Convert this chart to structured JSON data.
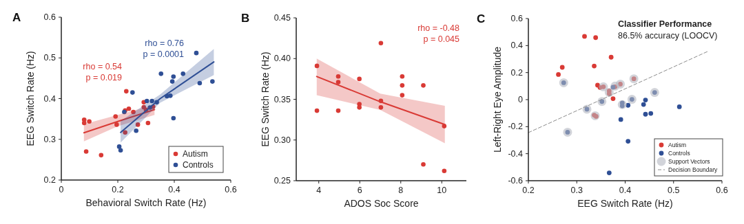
{
  "chart_data": [
    {
      "type": "scatter",
      "title": "A",
      "xlabel": "Behavioral Switch Rate (Hz)",
      "ylabel": "EEG Switch Rate (Hz)",
      "xlim": [
        0,
        0.6
      ],
      "ylim": [
        0.2,
        0.6
      ],
      "xticks": [
        0,
        0.2,
        0.4,
        0.6
      ],
      "yticks": [
        0.2,
        0.3,
        0.4,
        0.5,
        0.6
      ],
      "legend": "bottom right",
      "annotations": [
        "rho = 0.76",
        "p = 0.0001",
        "rho = 0.54",
        "p = 0.019"
      ],
      "series": [
        {
          "name": "Autism",
          "color": "#d93a35",
          "marker": "circle",
          "x": [
            0.081,
            0.081,
            0.099,
            0.088,
            0.141,
            0.192,
            0.196,
            0.23,
            0.239,
            0.226,
            0.255,
            0.226,
            0.271,
            0.292,
            0.292,
            0.3,
            0.307,
            0.325
          ],
          "values": [
            0.348,
            0.34,
            0.344,
            0.27,
            0.261,
            0.356,
            0.336,
            0.418,
            0.375,
            0.371,
            0.367,
            0.317,
            0.336,
            0.391,
            0.379,
            0.372,
            0.34,
            0.38
          ]
        },
        {
          "name": "Controls",
          "color": "#2f4f95",
          "marker": "circle",
          "x": [
            0.252,
            0.223,
            0.205,
            0.21,
            0.265,
            0.303,
            0.321,
            0.314,
            0.338,
            0.353,
            0.374,
            0.386,
            0.397,
            0.393,
            0.397,
            0.431,
            0.478,
            0.49,
            0.535
          ],
          "values": [
            0.415,
            0.367,
            0.282,
            0.273,
            0.321,
            0.394,
            0.394,
            0.378,
            0.391,
            0.461,
            0.406,
            0.407,
            0.454,
            0.442,
            0.352,
            0.461,
            0.512,
            0.438,
            0.442
          ]
        },
        {
          "type": "line",
          "marker": "none",
          "color": "#d93a35",
          "x": [
            0.08,
            0.2,
            0.33
          ],
          "values": [
            0.316,
            0.344,
            0.373
          ],
          "lower": [
            0.295,
            0.332,
            0.36
          ],
          "upper": [
            0.337,
            0.36,
            0.385
          ]
        },
        {
          "type": "line",
          "marker": "none",
          "color": "#2f4f95",
          "x": [
            0.21,
            0.35,
            0.54
          ],
          "values": [
            0.317,
            0.4,
            0.49
          ],
          "lower": [
            0.292,
            0.39,
            0.458
          ],
          "upper": [
            0.345,
            0.41,
            0.522
          ]
        }
      ]
    },
    {
      "type": "scatter",
      "title": "B",
      "xlabel": "ADOS Soc Score",
      "ylabel": "EEG Switch Rate (Hz)",
      "xlim": [
        2.9,
        11.2
      ],
      "ylim": [
        0.25,
        0.45
      ],
      "xticks": [
        4,
        6,
        8,
        10
      ],
      "yticks": [
        0.45,
        {
          "value": 0.4,
          "label": "0.40"
        },
        0.35,
        {
          "value": 0.3,
          "label": "0.30"
        },
        0.25
      ],
      "annotations": [
        "rho = -0.48",
        "p = 0.045"
      ],
      "series": [
        {
          "color": "#d93a35",
          "marker": "circle",
          "x": [
            3.91,
            3.91,
            4.95,
            4.95,
            4.95,
            5.98,
            5.98,
            5.98,
            7.03,
            7.03,
            7.03,
            8.07,
            8.07,
            8.07,
            9.1,
            9.1,
            10.12,
            10.12
          ],
          "values": [
            0.391,
            0.336,
            0.378,
            0.371,
            0.336,
            0.375,
            0.344,
            0.34,
            0.419,
            0.348,
            0.34,
            0.378,
            0.367,
            0.355,
            0.367,
            0.27,
            0.317,
            0.262
          ]
        },
        {
          "type": "line",
          "marker": "none",
          "color": "#d93a35",
          "x": [
            3.9,
            7,
            10.15
          ],
          "values": [
            0.378,
            0.347,
            0.319
          ],
          "lower": [
            0.355,
            0.337,
            0.296
          ],
          "upper": [
            0.4,
            0.357,
            0.342
          ]
        }
      ]
    },
    {
      "type": "scatter",
      "title": "C",
      "xlabel": "EEG Switch Rate (Hz)",
      "ylabel": "Left-Right Eye Amplitude",
      "xlim": [
        0.2,
        0.6
      ],
      "ylim": [
        -0.6,
        0.6
      ],
      "xticks": [
        0.2,
        0.3,
        0.4,
        0.5,
        0.6
      ],
      "yticks": [
        -0.6,
        -0.4,
        -0.2,
        0,
        0.2,
        0.4,
        0.6
      ],
      "legend": "bottom right",
      "annotations": [
        "Classifier Performance",
        "86.5% accuracy (LOOCV)"
      ],
      "series": [
        {
          "name": "Autism",
          "color": "#d93a35",
          "marker": "circle",
          "x": [
            0.316,
            0.339,
            0.371,
            0.336,
            0.27,
            0.262,
            0.418,
            0.343,
            0.348,
            0.355,
            0.379,
            0.39,
            0.367,
            0.367,
            0.375,
            0.336,
            0.34
          ],
          "values": [
            0.468,
            0.459,
            0.314,
            0.249,
            0.239,
            0.186,
            0.154,
            0.107,
            0.09,
            0.095,
            0.095,
            0.115,
            0.064,
            0.044,
            0.007,
            -0.115,
            -0.124
          ]
        },
        {
          "name": "Controls",
          "color": "#2f4f95",
          "marker": "circle",
          "x": [
            0.273,
            0.375,
            0.461,
            0.352,
            0.414,
            0.442,
            0.394,
            0.394,
            0.406,
            0.438,
            0.512,
            0.321,
            0.442,
            0.453,
            0.391,
            0.406,
            0.281,
            0.367
          ],
          "values": [
            0.125,
            0.092,
            0.053,
            -0.014,
            0.002,
            -0.003,
            -0.025,
            -0.046,
            -0.042,
            -0.036,
            -0.053,
            -0.071,
            -0.108,
            -0.102,
            -0.147,
            -0.308,
            -0.241,
            -0.542
          ]
        },
        {
          "name": "Support Vectors",
          "color": "#b4b8c2",
          "marker": "circle",
          "x": [
            0.273,
            0.379,
            0.355,
            0.418,
            0.39,
            0.367,
            0.352,
            0.394,
            0.414,
            0.461,
            0.321,
            0.338,
            0.281
          ],
          "values": [
            0.125,
            0.1,
            0.095,
            0.154,
            0.115,
            0.054,
            -0.014,
            -0.037,
            0.002,
            0.053,
            -0.071,
            -0.119,
            -0.241
          ]
        },
        {
          "name": "Decision Boundary",
          "type": "line",
          "marker": "none",
          "color": "#8c8c8c",
          "line_style": "dashed",
          "x": [
            0.2,
            0.572
          ],
          "values": [
            -0.244,
            0.359
          ]
        }
      ]
    }
  ]
}
